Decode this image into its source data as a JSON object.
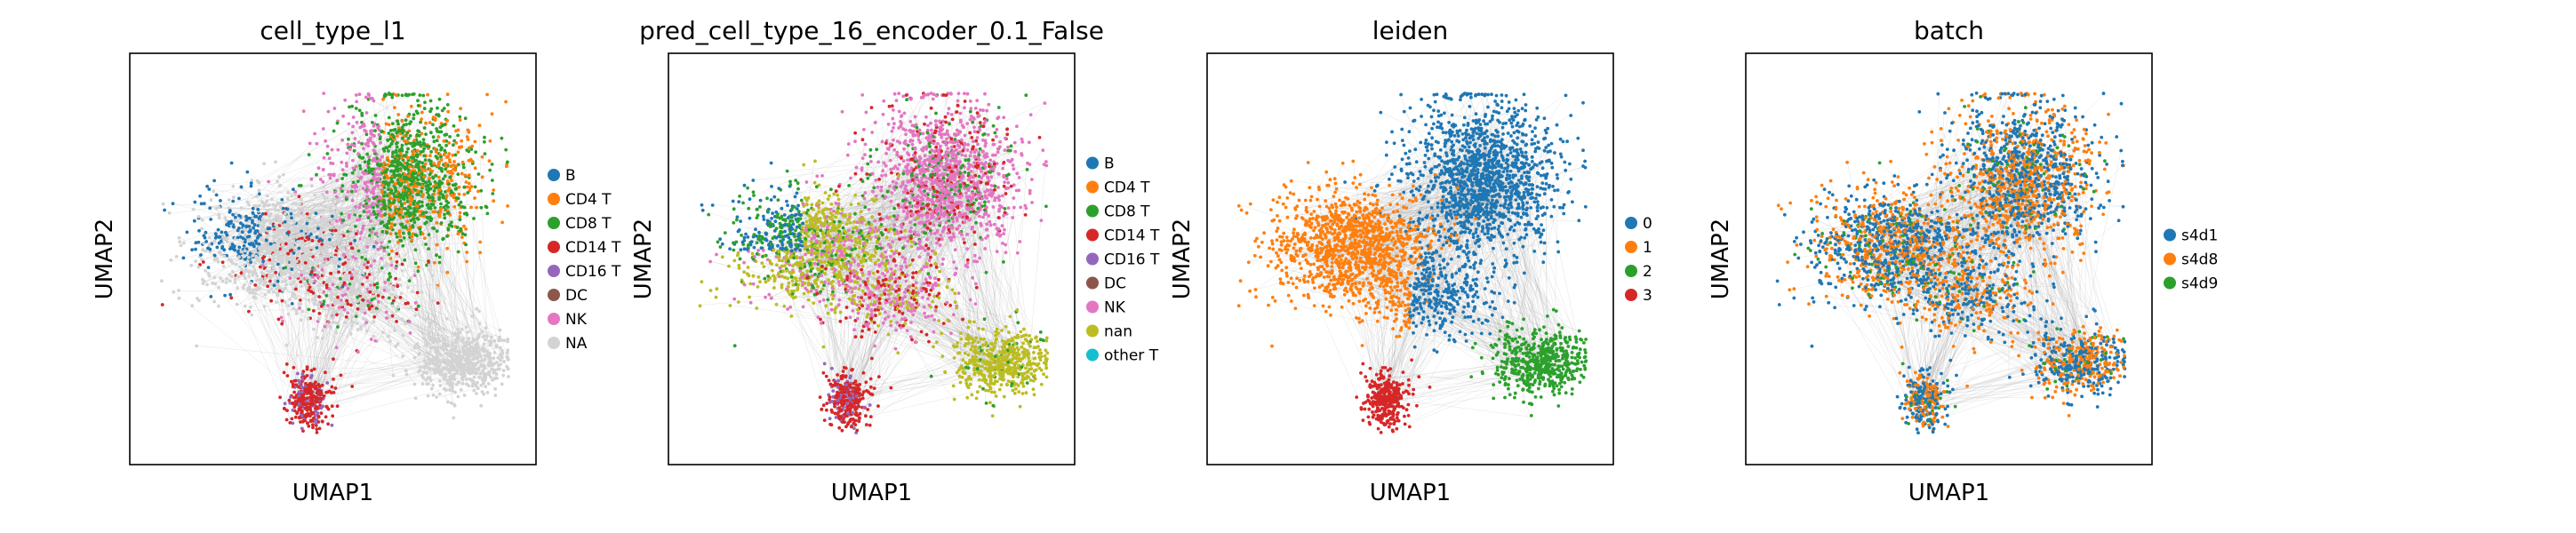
{
  "chart_data": [
    {
      "type": "scatter",
      "title": "cell_type_l1",
      "xlabel": "UMAP1",
      "ylabel": "UMAP2",
      "grid": false,
      "ticks": false,
      "legend_position": "right",
      "categories": [
        "B",
        "CD4 T",
        "CD8 T",
        "CD14 T",
        "CD16 T",
        "DC",
        "NK",
        "NA"
      ],
      "colors": [
        "#1f77b4",
        "#ff7f0e",
        "#2ca02c",
        "#d62728",
        "#9467bd",
        "#8c564b",
        "#e377c2",
        "#d3d3d3"
      ],
      "edges": "gray"
    },
    {
      "type": "scatter",
      "title": "pred_cell_type_16_encoder_0.1_False",
      "xlabel": "UMAP1",
      "ylabel": "UMAP2",
      "grid": false,
      "ticks": false,
      "legend_position": "right",
      "categories": [
        "B",
        "CD4 T",
        "CD8 T",
        "CD14 T",
        "CD16 T",
        "DC",
        "NK",
        "nan",
        "other T"
      ],
      "colors": [
        "#1f77b4",
        "#ff7f0e",
        "#2ca02c",
        "#d62728",
        "#9467bd",
        "#8c564b",
        "#e377c2",
        "#bcbd22",
        "#17becf"
      ],
      "edges": "gray"
    },
    {
      "type": "scatter",
      "title": "leiden",
      "xlabel": "UMAP1",
      "ylabel": "UMAP2",
      "grid": false,
      "ticks": false,
      "legend_position": "right",
      "categories": [
        "0",
        "1",
        "2",
        "3"
      ],
      "colors": [
        "#1f77b4",
        "#ff7f0e",
        "#2ca02c",
        "#d62728"
      ],
      "edges": "gray"
    },
    {
      "type": "scatter",
      "title": "batch",
      "xlabel": "UMAP1",
      "ylabel": "UMAP2",
      "grid": false,
      "ticks": false,
      "legend_position": "right",
      "categories": [
        "s4d1",
        "s4d8",
        "s4d9"
      ],
      "colors": [
        "#1f77b4",
        "#ff7f0e",
        "#2ca02c"
      ],
      "edges": "gray"
    }
  ]
}
